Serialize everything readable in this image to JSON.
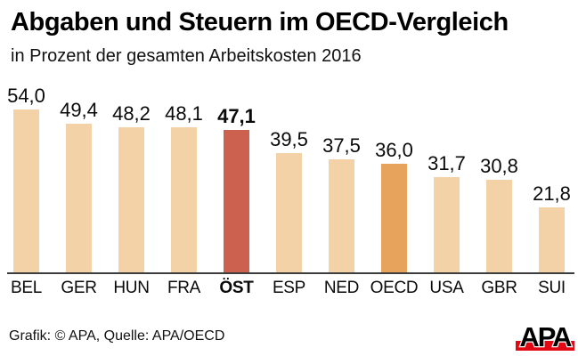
{
  "header": {
    "title": "Abgaben und Steuern im OECD-Vergleich",
    "subtitle": "in Prozent der gesamten Arbeitskosten 2016"
  },
  "chart_data": {
    "type": "bar",
    "title": "Abgaben und Steuern im OECD-Vergleich",
    "subtitle": "in Prozent der gesamten Arbeitskosten 2016",
    "categories": [
      "BEL",
      "GER",
      "HUN",
      "FRA",
      "ÖST",
      "ESP",
      "NED",
      "OECD",
      "USA",
      "GBR",
      "SUI"
    ],
    "values": [
      54.0,
      49.4,
      48.2,
      48.1,
      47.1,
      39.5,
      37.5,
      36.0,
      31.7,
      30.8,
      21.8
    ],
    "value_labels": [
      "54,0",
      "49,4",
      "48,2",
      "48,1",
      "47,1",
      "39,5",
      "37,5",
      "36,0",
      "31,7",
      "30,8",
      "21,8"
    ],
    "unit": "Prozent der gesamten Arbeitskosten",
    "year": "2016",
    "highlighted_category": "ÖST",
    "secondary_highlight_category": "OECD",
    "xlabel": "",
    "ylabel": "",
    "ylim": [
      0,
      60
    ],
    "grid": false,
    "legend": false,
    "colors": {
      "bar_default": "#f3d2a7",
      "bar_highlight": "#cc6150",
      "bar_secondary": "#e7a25c",
      "baseline": "#3d3d3d"
    }
  },
  "footer": {
    "credit": "Grafik: © APA, Quelle: APA/OECD",
    "logo_text": "APA",
    "logo_red": "#e30613"
  }
}
